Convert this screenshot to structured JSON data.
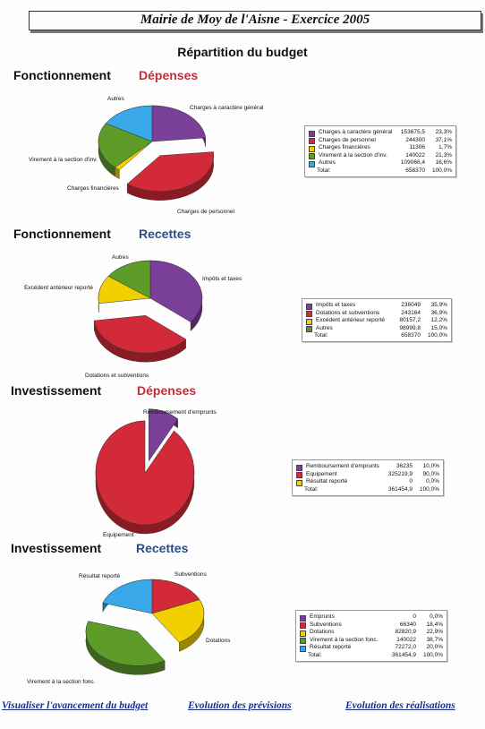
{
  "header": {
    "title": "Mairie de Moy de l'Aisne - Exercice 2005",
    "subtitle": "Répartition du budget"
  },
  "colors": {
    "purple": "#7a3f99",
    "red": "#d22a38",
    "yellow": "#f2d000",
    "green": "#5e9c2a",
    "cyan": "#38a8e8",
    "depenses_heading": "#c0303c",
    "recettes_heading": "#2a4f86"
  },
  "sections": [
    {
      "heading": "Fonctionnement",
      "kind": "Dépenses",
      "legend_total_label": "Total:",
      "legend_total_value": "658370",
      "legend_total_pct": "100,0%"
    },
    {
      "heading": "Fonctionnement",
      "kind": "Recettes",
      "legend_total_label": "Total:",
      "legend_total_value": "658370",
      "legend_total_pct": "100,0%"
    },
    {
      "heading": "Investissement",
      "kind": "Dépenses",
      "legend_total_label": "Total:",
      "legend_total_value": "361454,9",
      "legend_total_pct": "100,0%"
    },
    {
      "heading": "Investissement",
      "kind": "Recettes",
      "legend_total_label": "Total:",
      "legend_total_value": "361454,9",
      "legend_total_pct": "100,0%"
    }
  ],
  "chart_data": [
    {
      "type": "pie",
      "title": "Fonctionnement Dépenses",
      "slices": [
        {
          "name": "Charges à caractère général",
          "value": 153675.5,
          "value_text": "153675,5",
          "pct_text": "23,3%",
          "color": "#7a3f99"
        },
        {
          "name": "Charges de personnel",
          "value": 244300,
          "value_text": "244300",
          "pct_text": "37,1%",
          "color": "#d22a38"
        },
        {
          "name": "Charges financières",
          "value": 11306,
          "value_text": "11306",
          "pct_text": "1,7%",
          "color": "#f2d000"
        },
        {
          "name": "Virement à la section d'inv.",
          "value": 140022,
          "value_text": "140022",
          "pct_text": "21,3%",
          "color": "#5e9c2a"
        },
        {
          "name": "Autres",
          "value": 109066.4,
          "value_text": "109066,4",
          "pct_text": "16,6%",
          "color": "#38a8e8"
        }
      ],
      "exploded": [
        "Charges de personnel"
      ],
      "legend": "right"
    },
    {
      "type": "pie",
      "title": "Fonctionnement Recettes",
      "slices": [
        {
          "name": "Impôts et taxes",
          "value": 236049,
          "value_text": "236049",
          "pct_text": "35,9%",
          "color": "#7a3f99"
        },
        {
          "name": "Dotations et subventions",
          "value": 243164,
          "value_text": "243164",
          "pct_text": "36,9%",
          "color": "#d22a38"
        },
        {
          "name": "Excédent antérieur reporté",
          "value": 80157.2,
          "value_text": "80157,2",
          "pct_text": "12,2%",
          "color": "#f2d000"
        },
        {
          "name": "Autres",
          "value": 98999.8,
          "value_text": "98999,8",
          "pct_text": "15,0%",
          "color": "#5e9c2a"
        }
      ],
      "exploded": [
        "Dotations et subventions"
      ],
      "legend": "right"
    },
    {
      "type": "pie",
      "title": "Investissement Dépenses",
      "slices": [
        {
          "name": "Remboursement d'emprunts",
          "value": 36235,
          "value_text": "36235",
          "pct_text": "10,0%",
          "color": "#7a3f99"
        },
        {
          "name": "Equipement",
          "value": 325219.9,
          "value_text": "325219,9",
          "pct_text": "90,0%",
          "color": "#d22a38"
        },
        {
          "name": "Résultat reporté",
          "value": 0,
          "value_text": "0",
          "pct_text": "0,0%",
          "color": "#f2d000"
        }
      ],
      "exploded": [
        "Remboursement d'emprunts"
      ],
      "legend": "right"
    },
    {
      "type": "pie",
      "title": "Investissement Recettes",
      "slices": [
        {
          "name": "Emprunts",
          "value": 0,
          "value_text": "0",
          "pct_text": "0,0%",
          "color": "#7a3f99"
        },
        {
          "name": "Subventions",
          "value": 66340,
          "value_text": "66340",
          "pct_text": "18,4%",
          "color": "#d22a38"
        },
        {
          "name": "Dotations",
          "value": 82820.9,
          "value_text": "82820,9",
          "pct_text": "22,9%",
          "color": "#f2d000"
        },
        {
          "name": "Virement à la section fonc.",
          "value": 140022,
          "value_text": "140022",
          "pct_text": "38,7%",
          "color": "#5e9c2a"
        },
        {
          "name": "Résultat reporté",
          "value": 72272,
          "value_text": "72272,0",
          "pct_text": "20,0%",
          "color": "#38a8e8"
        }
      ],
      "exploded": [
        "Virement à la section fonc."
      ],
      "legend": "right"
    }
  ],
  "footer": {
    "links": [
      "Visualiser l'avancement du budget",
      "Evolution des prévisions",
      "Evolution des réalisations"
    ]
  }
}
